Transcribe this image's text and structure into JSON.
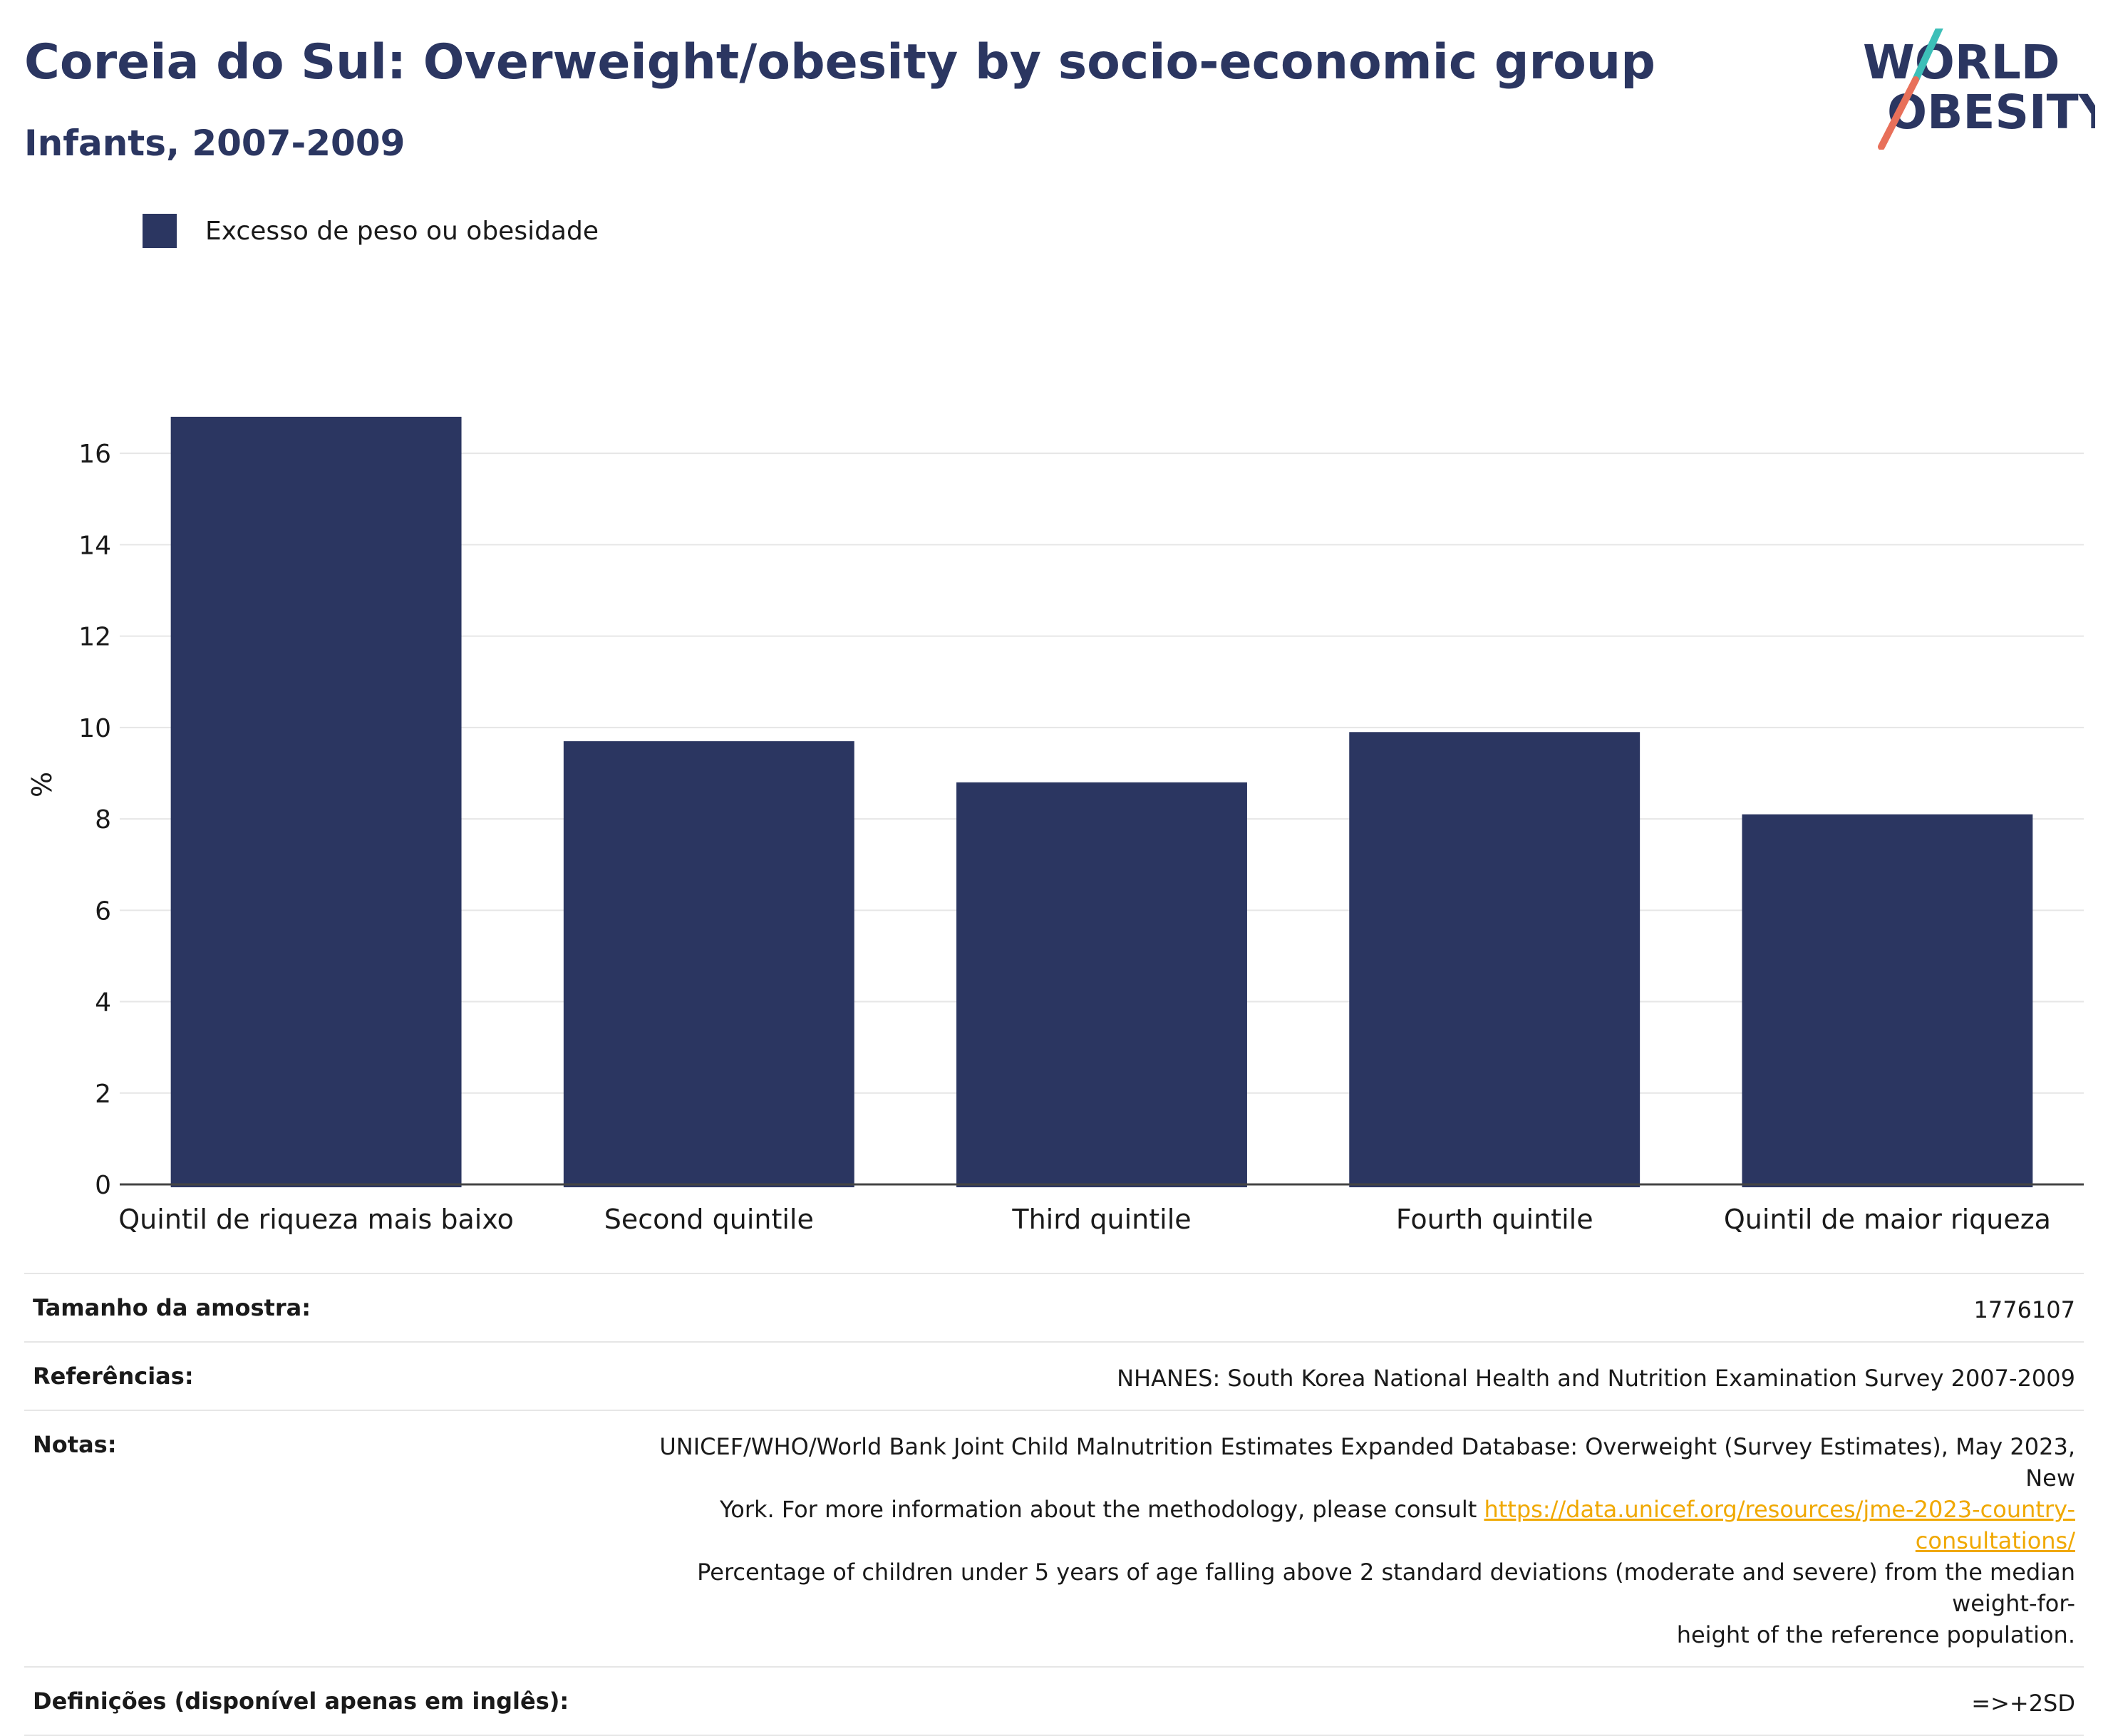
{
  "header": {
    "title": "Coreia do Sul: Overweight/obesity by socio-economic group",
    "subtitle": "Infants, 2007-2009"
  },
  "logo": {
    "line1": "WORLD",
    "line2": "OBESITY",
    "colors": {
      "text": "#2b3661",
      "slash_top": "#3dbfb8",
      "slash_bottom": "#e8705a"
    }
  },
  "legend": {
    "label": "Excesso de peso ou obesidade",
    "color": "#2b3661"
  },
  "chart_data": {
    "type": "bar",
    "categories": [
      "Quintil de riqueza mais baixo",
      "Second quintile",
      "Third quintile",
      "Fourth quintile",
      "Quintil de maior riqueza"
    ],
    "series": [
      {
        "name": "Excesso de peso ou obesidade",
        "values": [
          16.8,
          9.7,
          8.8,
          9.9,
          8.1
        ],
        "color": "#2b3661"
      }
    ],
    "ylabel": "%",
    "ylim": [
      0,
      17.5
    ],
    "yticks": [
      0,
      2,
      4,
      6,
      8,
      10,
      12,
      14,
      16
    ],
    "grid": true,
    "legend_position": "top-left"
  },
  "table": {
    "sample": {
      "label": "Tamanho da amostra:",
      "value": "1776107"
    },
    "references": {
      "label": "Referências:",
      "value": "NHANES: South Korea National Health and Nutrition Examination Survey 2007-2009"
    },
    "notes": {
      "label": "Notas:",
      "line1": "UNICEF/WHO/World Bank Joint Child Malnutrition Estimates Expanded Database: Overweight (Survey Estimates), May 2023, New",
      "line2": "York. For more information about the methodology, please consult",
      "link": "https://data.unicef.org/resources/jme-2023-country-consultations/",
      "line3": "Percentage of children under 5 years of age falling above 2 standard deviations (moderate and severe) from the median weight-for-",
      "line4": "height of the reference population."
    },
    "definitions": {
      "label": "Definições (disponível apenas em inglês):",
      "value": "=>+2SD"
    }
  }
}
